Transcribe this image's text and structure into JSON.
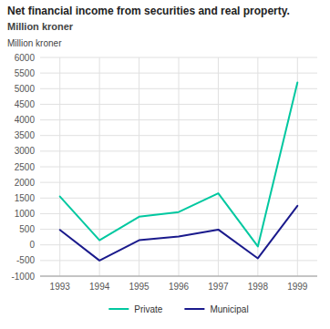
{
  "chart_data": {
    "type": "line",
    "title": "Net financial income from securities and real property.",
    "subtitle": "Million kroner",
    "y_label": "Million kroner",
    "x": [
      1993,
      1994,
      1995,
      1996,
      1997,
      1998,
      1999
    ],
    "series": [
      {
        "name": "Private",
        "color": "#00C8A0",
        "values": [
          1550,
          150,
          900,
          1050,
          1650,
          -50,
          5200
        ]
      },
      {
        "name": "Municipal",
        "color": "#1A1A8C",
        "values": [
          480,
          -500,
          150,
          270,
          490,
          -430,
          1250
        ]
      }
    ],
    "xlim": [
      1992.5,
      1999.5
    ],
    "xticks": [
      1993,
      1994,
      1995,
      1996,
      1997,
      1998,
      1999
    ],
    "ylim": [
      -1000,
      6000
    ],
    "yticks": [
      -1000,
      -500,
      0,
      500,
      1000,
      1500,
      2000,
      2500,
      3000,
      3500,
      4000,
      4500,
      5000,
      5500,
      6000
    ],
    "grid": true,
    "legend": "bottom"
  }
}
